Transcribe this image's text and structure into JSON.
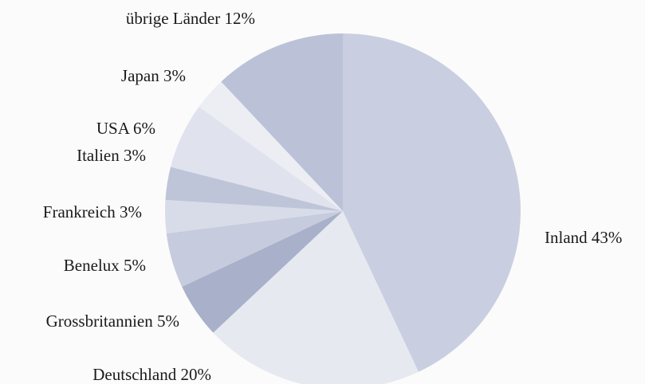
{
  "chart_data": {
    "type": "pie",
    "categories": [
      "Inland",
      "Deutschland",
      "Grossbritannien",
      "Benelux",
      "Frankreich",
      "Italien",
      "USA",
      "Japan",
      "übrige Länder"
    ],
    "values": [
      43,
      20,
      5,
      5,
      3,
      3,
      6,
      3,
      12
    ],
    "value_labels": [
      "43%",
      "20%",
      "5%",
      "5%",
      "3%",
      "3%",
      "6%",
      "3%",
      "12%"
    ],
    "colors": [
      "#c9cfe1",
      "#e7e9f1",
      "#a8b0ca",
      "#c6cbdd",
      "#d8dce8",
      "#bec5d9",
      "#e0e3ed",
      "#eceef4",
      "#bbc2d7"
    ]
  }
}
